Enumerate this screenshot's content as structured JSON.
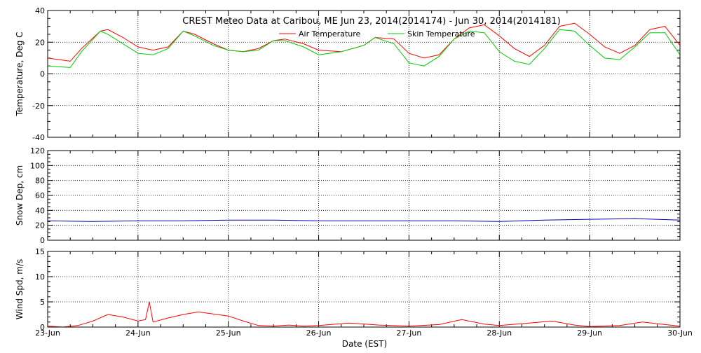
{
  "chart_data": {
    "title": "CREST Meteo Data at Caribou, ME   Jun 23, 2014(2014174) - Jun 30, 2014(2014181)",
    "xlabel": "Date (EST)",
    "x_tick_labels": [
      "23-Jun",
      "24-Jun",
      "25-Jun",
      "26-Jun",
      "27-Jun",
      "28-Jun",
      "29-Jun",
      "30-Jun"
    ],
    "xlim": [
      "2014-06-23",
      "2014-06-30"
    ],
    "grid": true,
    "panels": [
      {
        "type": "line",
        "ylabel": "Temperature, Deg C",
        "ylim": [
          -40,
          40
        ],
        "y_ticks": [
          -40,
          -20,
          0,
          20,
          40
        ],
        "legend": "top-center",
        "series": [
          {
            "name": "Air Temperature",
            "color": "#ff0000",
            "x": [
              "2014-06-23 00:00",
              "2014-06-23 06:00",
              "2014-06-23 09:00",
              "2014-06-23 14:00",
              "2014-06-23 16:00",
              "2014-06-23 20:00",
              "2014-06-24 00:00",
              "2014-06-24 04:00",
              "2014-06-24 08:00",
              "2014-06-24 12:00",
              "2014-06-24 15:00",
              "2014-06-24 20:00",
              "2014-06-25 00:00",
              "2014-06-25 04:00",
              "2014-06-25 08:00",
              "2014-06-25 12:00",
              "2014-06-25 15:00",
              "2014-06-25 20:00",
              "2014-06-26 00:00",
              "2014-06-26 06:00",
              "2014-06-26 12:00",
              "2014-06-26 15:00",
              "2014-06-26 20:00",
              "2014-06-27 00:00",
              "2014-06-27 04:00",
              "2014-06-27 08:00",
              "2014-06-27 12:00",
              "2014-06-27 16:00",
              "2014-06-27 20:00",
              "2014-06-28 00:00",
              "2014-06-28 04:00",
              "2014-06-28 08:00",
              "2014-06-28 12:00",
              "2014-06-28 16:00",
              "2014-06-28 20:00",
              "2014-06-29 00:00",
              "2014-06-29 04:00",
              "2014-06-29 08:00",
              "2014-06-29 12:00",
              "2014-06-29 16:00",
              "2014-06-29 20:00",
              "2014-06-30 00:00"
            ],
            "values": [
              10,
              8,
              16,
              27,
              28,
              23,
              17,
              15,
              17,
              27,
              25,
              19,
              15,
              14,
              16,
              21,
              22,
              19,
              15,
              14,
              18,
              23,
              22,
              13,
              10,
              12,
              22,
              29,
              31,
              24,
              16,
              11,
              18,
              30,
              32,
              25,
              17,
              13,
              18,
              28,
              30,
              18
            ]
          },
          {
            "name": "Skin Temperature",
            "color": "#00cc00",
            "x": [
              "2014-06-23 00:00",
              "2014-06-23 06:00",
              "2014-06-23 09:00",
              "2014-06-23 14:00",
              "2014-06-23 16:00",
              "2014-06-23 20:00",
              "2014-06-24 00:00",
              "2014-06-24 04:00",
              "2014-06-24 08:00",
              "2014-06-24 12:00",
              "2014-06-24 15:00",
              "2014-06-24 20:00",
              "2014-06-25 00:00",
              "2014-06-25 04:00",
              "2014-06-25 08:00",
              "2014-06-25 12:00",
              "2014-06-25 15:00",
              "2014-06-25 20:00",
              "2014-06-26 00:00",
              "2014-06-26 06:00",
              "2014-06-26 12:00",
              "2014-06-26 15:00",
              "2014-06-26 20:00",
              "2014-06-27 00:00",
              "2014-06-27 04:00",
              "2014-06-27 08:00",
              "2014-06-27 12:00",
              "2014-06-27 16:00",
              "2014-06-27 20:00",
              "2014-06-28 00:00",
              "2014-06-28 04:00",
              "2014-06-28 08:00",
              "2014-06-28 12:00",
              "2014-06-28 16:00",
              "2014-06-28 20:00",
              "2014-06-29 00:00",
              "2014-06-29 04:00",
              "2014-06-29 08:00",
              "2014-06-29 12:00",
              "2014-06-29 16:00",
              "2014-06-29 20:00",
              "2014-06-30 00:00"
            ],
            "values": [
              5,
              4,
              14,
              27,
              25,
              19,
              13,
              12,
              16,
              27,
              24,
              18,
              15,
              14,
              15,
              21,
              21,
              17,
              12,
              14,
              18,
              23,
              19,
              7,
              5,
              11,
              22,
              27,
              26,
              14,
              8,
              6,
              16,
              28,
              27,
              18,
              10,
              9,
              17,
              26,
              26,
              12
            ]
          }
        ]
      },
      {
        "type": "line",
        "ylabel": "Snow Dep, cm",
        "ylim": [
          0,
          120
        ],
        "y_ticks": [
          0,
          20,
          40,
          60,
          80,
          100,
          120
        ],
        "series": [
          {
            "color": "#0000aa",
            "x": [
              "2014-06-23 00:00",
              "2014-06-23 12:00",
              "2014-06-24 00:00",
              "2014-06-24 12:00",
              "2014-06-25 00:00",
              "2014-06-25 12:00",
              "2014-06-26 00:00",
              "2014-06-26 12:00",
              "2014-06-27 00:00",
              "2014-06-27 12:00",
              "2014-06-28 00:00",
              "2014-06-28 12:00",
              "2014-06-29 00:00",
              "2014-06-29 12:00",
              "2014-06-30 00:00"
            ],
            "values": [
              26,
              25,
              26,
              26,
              27,
              27,
              26,
              26,
              26,
              26,
              25,
              27,
              28,
              29,
              27
            ]
          }
        ]
      },
      {
        "type": "line",
        "ylabel": "Wind Spd, m/s",
        "ylim": [
          0,
          15
        ],
        "y_ticks": [
          0,
          5,
          10,
          15
        ],
        "series": [
          {
            "color": "#ff0000",
            "x": [
              "2014-06-23 00:00",
              "2014-06-23 04:00",
              "2014-06-23 08:00",
              "2014-06-23 12:00",
              "2014-06-23 16:00",
              "2014-06-23 20:00",
              "2014-06-24 00:00",
              "2014-06-24 02:00",
              "2014-06-24 03:00",
              "2014-06-24 04:00",
              "2014-06-24 08:00",
              "2014-06-24 12:00",
              "2014-06-24 16:00",
              "2014-06-24 20:00",
              "2014-06-25 00:00",
              "2014-06-25 04:00",
              "2014-06-25 08:00",
              "2014-06-25 12:00",
              "2014-06-25 16:00",
              "2014-06-25 20:00",
              "2014-06-26 00:00",
              "2014-06-26 08:00",
              "2014-06-26 16:00",
              "2014-06-27 00:00",
              "2014-06-27 08:00",
              "2014-06-27 14:00",
              "2014-06-27 20:00",
              "2014-06-28 00:00",
              "2014-06-28 08:00",
              "2014-06-28 14:00",
              "2014-06-28 20:00",
              "2014-06-29 00:00",
              "2014-06-29 08:00",
              "2014-06-29 14:00",
              "2014-06-29 20:00",
              "2014-06-30 00:00"
            ],
            "values": [
              0.2,
              0,
              0.3,
              1.2,
              2.5,
              2.0,
              1.2,
              1.5,
              5.0,
              1.0,
              1.8,
              2.5,
              3.0,
              2.6,
              2.2,
              1.2,
              0.3,
              0.2,
              0.4,
              0.2,
              0.3,
              0.8,
              0.4,
              0.2,
              0.5,
              1.5,
              0.6,
              0.3,
              0.8,
              1.2,
              0.4,
              0.1,
              0.3,
              1.0,
              0.5,
              0.2
            ]
          }
        ]
      }
    ]
  }
}
